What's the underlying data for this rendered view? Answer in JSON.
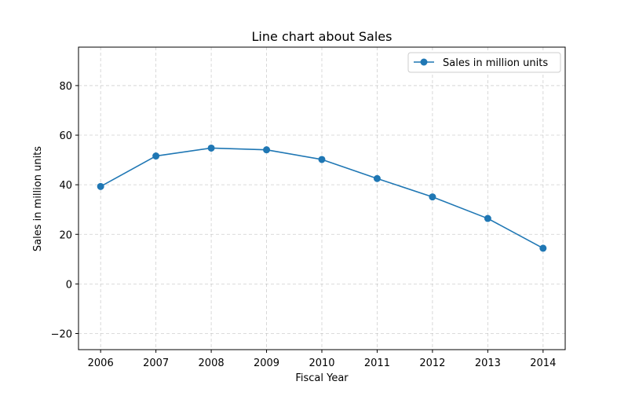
{
  "chart_data": {
    "type": "line",
    "title": "Line chart about Sales",
    "xlabel": "Fiscal Year",
    "ylabel": "Sales in million units",
    "x": [
      2006,
      2007,
      2008,
      2009,
      2010,
      2011,
      2012,
      2013,
      2014
    ],
    "x_tick_labels": [
      "2006",
      "2007",
      "2008",
      "2009",
      "2010",
      "2011",
      "2012",
      "2013",
      "2014"
    ],
    "y_ticks": [
      -20,
      0,
      20,
      40,
      60,
      80
    ],
    "y_tick_labels": [
      "−20",
      "0",
      "20",
      "40",
      "60",
      "80"
    ],
    "xlim": [
      2005.6,
      2014.4
    ],
    "ylim": [
      -26.5,
      95.5
    ],
    "grid": true,
    "legend_position": "top-right",
    "series": [
      {
        "name": "Sales in million units",
        "color": "#1f77b4",
        "marker": "circle",
        "values": [
          39.3,
          51.6,
          54.8,
          54.1,
          50.2,
          42.5,
          35.1,
          26.4,
          14.4
        ]
      }
    ]
  }
}
